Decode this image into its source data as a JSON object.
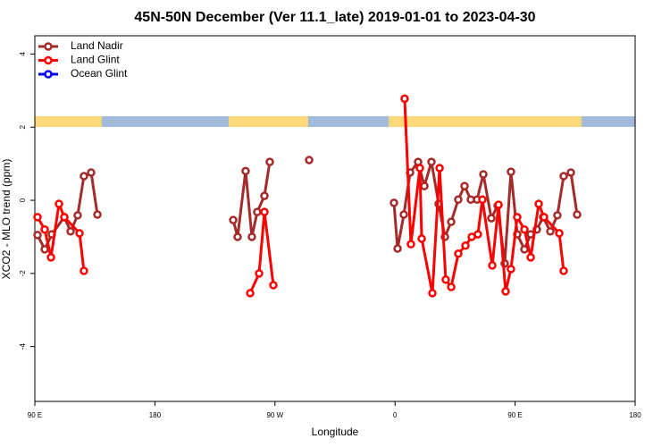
{
  "chart_data": {
    "type": "line",
    "title": "45N-50N December (Ver 11.1_late)   2019-01-01 to 2023-04-30",
    "x_label": "Longitude",
    "y_label": "XCO2 - MLO trend (ppm)",
    "xlim": [
      90,
      540
    ],
    "ylim": [
      -5.5,
      4.5
    ],
    "xticks": [
      {
        "value": 90,
        "label": "90 E"
      },
      180,
      {
        "value": 270,
        "label": "90 W"
      },
      {
        "value": 360,
        "label": "0"
      },
      {
        "value": 450,
        "label": "90 E"
      },
      {
        "value": 540,
        "label": "180"
      }
    ],
    "yticks": [
      -4,
      -2,
      0,
      2,
      4
    ],
    "grid": false,
    "legend": "top-left",
    "series": [
      {
        "name": "Land Nadir",
        "color": "#a52a2a",
        "x": [
          92.0,
          97.4,
          102.7,
          112.1,
          116.8,
          122.1,
          126.8,
          132.2,
          136.9,
          null,
          238.7,
          242.0,
          248.0,
          252.7,
          256.7,
          262.1,
          266.1,
          null,
          295.6,
          null,
          359.2,
          361.9,
          366.6,
          371.3,
          377.3,
          382.0,
          387.3,
          392.7,
          397.4,
          402.1,
          407.4,
          412.1,
          416.8,
          421.5,
          426.2,
          432.2,
          436.9,
          442.2,
          446.9,
          451.6,
          457.0,
          461.7,
          466.3,
          471.0,
          476.4,
          481.7,
          486.4,
          491.8,
          496.5
        ],
        "values": [
          -0.95,
          -1.34,
          -0.93,
          -0.46,
          -0.85,
          -0.41,
          0.66,
          0.76,
          -0.39,
          null,
          -0.54,
          -1.0,
          0.8,
          -1.0,
          -0.32,
          0.12,
          1.05,
          null,
          1.1,
          null,
          -0.07,
          -1.32,
          -0.39,
          0.76,
          1.05,
          0.39,
          1.05,
          -0.1,
          -1.0,
          -0.59,
          0.02,
          0.39,
          0.02,
          0.02,
          0.71,
          -0.49,
          -0.15,
          -1.73,
          0.78,
          -0.93,
          -1.34,
          -0.93,
          -0.8,
          -0.46,
          -0.85,
          -0.41,
          0.66,
          0.76,
          -0.39
        ]
      },
      {
        "name": "Land Glint",
        "color": "#ff0000",
        "x": [
          92.0,
          97.4,
          102.1,
          108.1,
          112.1,
          123.5,
          126.8,
          null,
          251.4,
          258.1,
          262.1,
          268.8,
          null,
          367.2,
          371.9,
          378.6,
          380.0,
          388.0,
          393.4,
          398.0,
          402.1,
          407.4,
          412.8,
          417.5,
          422.1,
          425.5,
          432.9,
          437.6,
          442.9,
          446.9,
          451.6,
          457.0,
          461.7,
          467.7,
          471.7,
          483.1,
          486.4
        ],
        "values": [
          -0.46,
          -0.8,
          -1.56,
          -0.1,
          -0.46,
          -0.9,
          -1.93,
          null,
          -2.54,
          -2.0,
          -0.32,
          -2.32,
          null,
          2.78,
          -1.2,
          0.88,
          -1.05,
          -2.54,
          0.88,
          -2.17,
          -2.37,
          -1.46,
          -1.24,
          -1.0,
          -0.93,
          0.02,
          -1.78,
          -0.12,
          -2.49,
          -1.88,
          -0.46,
          -0.8,
          -1.56,
          -0.1,
          -0.46,
          -0.9,
          -1.93
        ]
      },
      {
        "name": "Ocean Glint",
        "color": "#0000ff",
        "x": [],
        "values": []
      }
    ]
  }
}
